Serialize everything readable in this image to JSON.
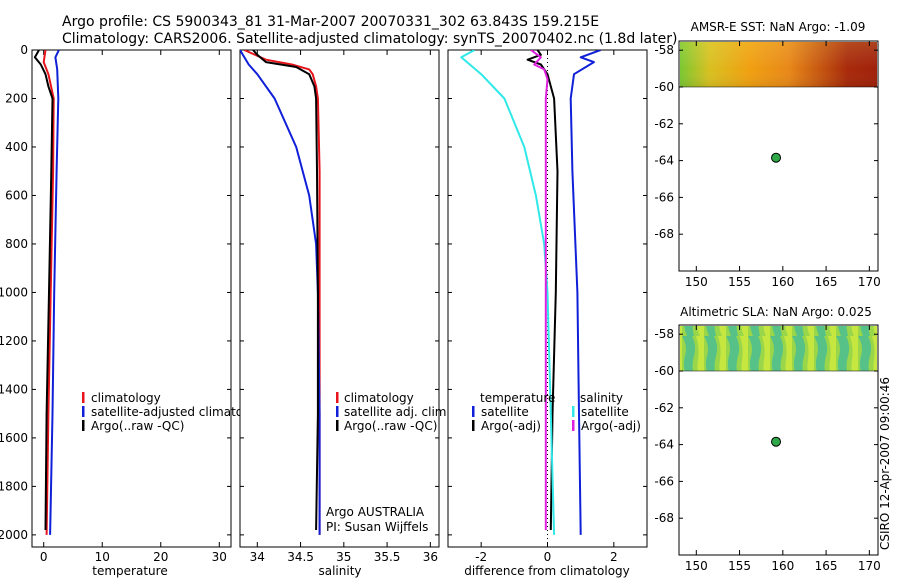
{
  "header": {
    "line1": "Argo profile: CS 5900343_81 31-Mar-2007 20070331_302 63.843S 159.215E",
    "line2": "Climatology: CARS2006. Satellite-adjusted climatology: synTS_20070402.nc (1.8d later)"
  },
  "footer": {
    "stamp": "CSIRO 12-Apr-2007 09:00:46"
  },
  "colors": {
    "red": "#e8141c",
    "blue": "#1020d8",
    "black": "#000000",
    "cyan": "#30e8e8",
    "magenta": "#e020e0",
    "marker": "#2fa84a"
  },
  "chart_data": [
    {
      "type": "line",
      "id": "temperature",
      "xlabel": "temperature",
      "xlim": [
        -2,
        32
      ],
      "ylim": [
        2050,
        0
      ],
      "x_ticks": [
        0,
        10,
        20,
        30
      ],
      "y_ticks": [
        0,
        200,
        400,
        600,
        800,
        1000,
        1200,
        1400,
        1600,
        1800,
        2000
      ],
      "legend": [
        "climatology",
        "satellite-adjusted climatology",
        "Argo(..raw -QC)"
      ],
      "series": [
        {
          "name": "climatology",
          "color": "red",
          "depth": [
            0,
            50,
            100,
            200,
            500,
            1000,
            1500,
            2000
          ],
          "x": [
            0.3,
            0.0,
            0.8,
            1.7,
            1.6,
            1.2,
            0.8,
            0.5
          ]
        },
        {
          "name": "satellite-adjusted climatology",
          "color": "blue",
          "depth": [
            0,
            30,
            80,
            200,
            500,
            1000,
            1500,
            2000
          ],
          "x": [
            2.6,
            2.0,
            2.3,
            2.5,
            2.2,
            1.8,
            1.5,
            1.1
          ]
        },
        {
          "name": "Argo(..raw -QC)",
          "color": "black",
          "depth": [
            0,
            30,
            60,
            100,
            150,
            200,
            500,
            1000,
            1500,
            1980
          ],
          "x": [
            -0.8,
            -1.5,
            -0.5,
            0.3,
            0.8,
            1.5,
            1.3,
            0.9,
            0.5,
            0.3
          ]
        }
      ]
    },
    {
      "type": "line",
      "id": "salinity",
      "xlabel": "salinity",
      "xlim": [
        33.8,
        36.1
      ],
      "ylim": [
        2050,
        0
      ],
      "x_ticks": [
        34,
        34.5,
        35,
        35.5,
        36
      ],
      "legend": [
        "climatology",
        "satellite adj. clim.",
        "Argo(..raw -QC)"
      ],
      "annotations": [
        "Argo AUSTRALIA",
        "PI: Susan Wijffels"
      ],
      "series": [
        {
          "name": "climatology",
          "color": "red",
          "depth": [
            0,
            40,
            60,
            80,
            100,
            150,
            200,
            500,
            1000,
            2000
          ],
          "x": [
            33.85,
            34.1,
            34.4,
            34.6,
            34.64,
            34.68,
            34.7,
            34.72,
            34.72,
            34.72
          ]
        },
        {
          "name": "satellite adj. clim.",
          "color": "blue",
          "depth": [
            0,
            60,
            100,
            200,
            400,
            600,
            800,
            1000,
            1500,
            2000
          ],
          "x": [
            33.8,
            33.9,
            34.0,
            34.2,
            34.45,
            34.6,
            34.68,
            34.7,
            34.72,
            34.72
          ]
        },
        {
          "name": "Argo(..raw -QC)",
          "color": "black",
          "depth": [
            0,
            20,
            50,
            70,
            100,
            150,
            200,
            500,
            1000,
            1500,
            1980
          ],
          "x": [
            33.95,
            34.0,
            34.1,
            34.45,
            34.6,
            34.66,
            34.68,
            34.69,
            34.7,
            34.7,
            34.68
          ]
        }
      ]
    },
    {
      "type": "line",
      "id": "difference",
      "xlabel": "difference from climatology",
      "xlim": [
        -3,
        3
      ],
      "ylim": [
        2050,
        0
      ],
      "x_ticks": [
        -2,
        0,
        2
      ],
      "legend_headers": [
        "temperature",
        "salinity"
      ],
      "legend": [
        "satellite",
        "Argo(-adj)",
        "satellite",
        "Argo(-adj)"
      ],
      "series": [
        {
          "name": "temperature satellite",
          "color": "blue",
          "depth": [
            0,
            30,
            50,
            100,
            200,
            500,
            1000,
            1500,
            2000
          ],
          "x": [
            1.6,
            1.0,
            1.4,
            0.8,
            0.7,
            0.75,
            0.9,
            0.95,
            1.0
          ]
        },
        {
          "name": "temperature Argo(-adj)",
          "color": "black",
          "depth": [
            0,
            20,
            40,
            60,
            100,
            200,
            500,
            1000,
            1500,
            1980
          ],
          "x": [
            -0.3,
            -0.2,
            -0.6,
            -0.2,
            0.0,
            0.2,
            0.3,
            0.25,
            0.15,
            0.1
          ]
        },
        {
          "name": "salinity satellite",
          "color": "cyan",
          "depth": [
            0,
            30,
            100,
            200,
            400,
            600,
            800,
            1000,
            1500,
            2000
          ],
          "x": [
            -2.2,
            -2.6,
            -2.0,
            -1.3,
            -0.7,
            -0.35,
            -0.1,
            0.0,
            0.1,
            0.2
          ]
        },
        {
          "name": "salinity Argo(-adj)",
          "color": "magenta",
          "depth": [
            0,
            30,
            60,
            80,
            120,
            200,
            500,
            1000,
            1500,
            1980
          ],
          "x": [
            -0.5,
            -0.2,
            -0.4,
            -0.1,
            0.0,
            -0.05,
            -0.05,
            -0.05,
            -0.05,
            -0.05
          ]
        }
      ]
    },
    {
      "type": "heatmap",
      "id": "sst_map",
      "title": "AMSR-E SST: NaN Argo: -1.09",
      "xlim": [
        148,
        171
      ],
      "ylim": [
        -70,
        -57.5
      ],
      "x_ticks": [
        150,
        155,
        160,
        165,
        170
      ],
      "y_ticks": [
        -58,
        -60,
        -62,
        -64,
        -66,
        -68
      ],
      "data_extent_lat": [
        -58,
        -60
      ],
      "marker": {
        "lon": 159.215,
        "lat": -63.843
      }
    },
    {
      "type": "heatmap",
      "id": "sla_map",
      "title": "Altimetric SLA: NaN Argo: 0.025",
      "xlim": [
        148,
        171
      ],
      "ylim": [
        -70,
        -57.5
      ],
      "x_ticks": [
        150,
        155,
        160,
        165,
        170
      ],
      "y_ticks": [
        -58,
        -60,
        -62,
        -64,
        -66,
        -68
      ],
      "data_extent_lat": [
        -58,
        -60
      ],
      "marker": {
        "lon": 159.215,
        "lat": -63.843
      }
    }
  ]
}
